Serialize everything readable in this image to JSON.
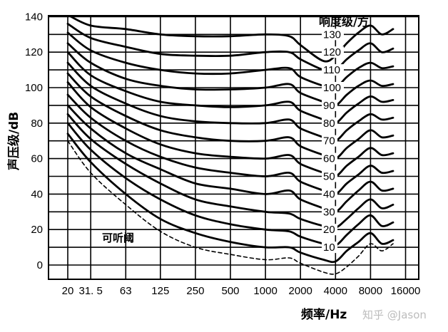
{
  "chart_data": {
    "type": "line",
    "title": "",
    "xlabel": "频率/Hz",
    "ylabel": "声压级/dB",
    "legend_title": "响度级/方",
    "threshold_label": "可听阈",
    "watermark": "知乎 @Jason",
    "xscale": "log",
    "x_ticks": [
      20,
      31.5,
      63,
      125,
      250,
      500,
      1000,
      2000,
      4000,
      8000,
      16000
    ],
    "x_tick_labels": [
      "20",
      "31. 5",
      "63",
      "125",
      "250",
      "500",
      "1000",
      "2000",
      "4000",
      "8000",
      "16000"
    ],
    "y_ticks": [
      0,
      20,
      40,
      60,
      80,
      100,
      120,
      140
    ],
    "y_tick_labels": [
      "0",
      "20",
      "40",
      "60",
      "80",
      "100",
      "120",
      "140"
    ],
    "ylim": [
      -5,
      140
    ],
    "grid": true,
    "x": [
      20,
      31.5,
      63,
      125,
      250,
      500,
      1000,
      1600,
      2000,
      3150,
      4000,
      5000,
      6300,
      8000,
      10000,
      12500
    ],
    "series": [
      {
        "name": "10",
        "values": [
          74,
          58,
          40,
          26,
          18,
          13,
          10,
          10,
          7,
          3,
          2,
          8,
          13,
          18,
          12,
          14
        ]
      },
      {
        "name": "20",
        "values": [
          80,
          65,
          49,
          37,
          28,
          23,
          20,
          19,
          16,
          12,
          11,
          17,
          23,
          28,
          22,
          24
        ]
      },
      {
        "name": "30",
        "values": [
          85,
          71,
          57,
          46,
          37,
          33,
          30,
          29,
          26,
          22,
          21,
          26,
          32,
          37,
          32,
          34
        ]
      },
      {
        "name": "40",
        "values": [
          90,
          77,
          63,
          54,
          46,
          43,
          40,
          42,
          37,
          32,
          30,
          36,
          42,
          47,
          42,
          43
        ]
      },
      {
        "name": "50",
        "values": [
          96,
          83,
          70,
          61,
          55,
          52,
          50,
          52,
          47,
          42,
          40,
          46,
          51,
          56,
          52,
          53
        ]
      },
      {
        "name": "60",
        "values": [
          103,
          89,
          77,
          68,
          63,
          61,
          60,
          62,
          57,
          52,
          50,
          56,
          61,
          66,
          62,
          63
        ]
      },
      {
        "name": "70",
        "values": [
          108,
          95,
          84,
          76,
          72,
          70,
          70,
          72,
          67,
          62,
          60,
          66,
          71,
          76,
          72,
          73
        ]
      },
      {
        "name": "80",
        "values": [
          114,
          101,
          91,
          84,
          81,
          80,
          80,
          82,
          77,
          72,
          70,
          76,
          81,
          85,
          82,
          83
        ]
      },
      {
        "name": "90",
        "values": [
          120,
          107,
          98,
          92,
          90,
          89,
          90,
          92,
          87,
          82,
          80,
          86,
          91,
          95,
          92,
          93
        ]
      },
      {
        "name": "100",
        "values": [
          125,
          114,
          105,
          101,
          99,
          99,
          100,
          102,
          97,
          92,
          90,
          96,
          101,
          104,
          101,
          102
        ]
      },
      {
        "name": "110",
        "values": [
          131,
          121,
          114,
          110,
          108,
          108,
          110,
          111,
          106,
          101,
          100,
          106,
          111,
          114,
          111,
          112
        ]
      },
      {
        "name": "120",
        "values": [
          136,
          128,
          123,
          119,
          118,
          118,
          120,
          120,
          116,
          110,
          110,
          116,
          121,
          125,
          120,
          122
        ]
      },
      {
        "name": "130",
        "values": [
          141,
          135,
          133,
          130,
          129,
          129,
          130,
          129,
          124,
          115,
          118,
          125,
          131,
          135,
          130,
          133
        ]
      },
      {
        "name": "可听阈",
        "dashed": true,
        "values": [
          70,
          52,
          34,
          19,
          10,
          6,
          3,
          4,
          1,
          -4,
          -5,
          -1,
          5,
          12,
          8,
          12
        ]
      }
    ]
  }
}
